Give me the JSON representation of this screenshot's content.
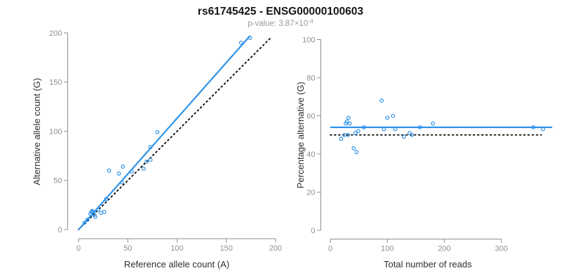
{
  "title": "rs61745425 - ENSG00000100603",
  "subtitle": {
    "label": "p-value:",
    "text": "p-value: 3.87×10",
    "exponent": "-4",
    "p_value": "3.87e-4"
  },
  "colors": {
    "accent_blue": "#2e93ea",
    "reference_black": "#000000",
    "axis_gray": "#8e8e8e",
    "tick_label_gray": "#8e8e8e",
    "axis_title_dark": "#2e2e2e",
    "subtitle_gray": "#9b9b9b",
    "background": "#ffffff"
  },
  "chart_data": [
    {
      "type": "scatter",
      "panel": "left",
      "title": "",
      "xlabel": "Reference allele count (A)",
      "ylabel": "Alternative allele count (G)",
      "xlim": [
        0,
        200
      ],
      "ylim": [
        0,
        200
      ],
      "xticks": [
        0,
        50,
        100,
        150,
        200
      ],
      "yticks": [
        0,
        50,
        100,
        150,
        200
      ],
      "grid": false,
      "legend": "none",
      "points": [
        [
          6,
          7
        ],
        [
          9,
          10
        ],
        [
          12,
          16
        ],
        [
          13,
          18
        ],
        [
          14,
          19
        ],
        [
          15,
          18
        ],
        [
          16,
          15
        ],
        [
          17,
          13
        ],
        [
          20,
          20
        ],
        [
          23,
          17
        ],
        [
          26,
          18
        ],
        [
          28,
          31
        ],
        [
          31,
          60
        ],
        [
          41,
          57
        ],
        [
          44,
          48
        ],
        [
          45,
          64
        ],
        [
          54,
          59
        ],
        [
          66,
          62
        ],
        [
          69,
          69
        ],
        [
          73,
          71
        ],
        [
          73,
          84
        ],
        [
          80,
          99
        ],
        [
          165,
          190
        ],
        [
          174,
          195
        ]
      ],
      "lines": [
        {
          "name": "identity-line",
          "role": "y-equals-x reference",
          "x1": 0,
          "y1": 0,
          "x2": 195,
          "y2": 195,
          "style": "dotted",
          "color": "black"
        },
        {
          "name": "regression-line",
          "role": "fit through points, slope ~1.13",
          "x1": 0,
          "y1": 0,
          "x2": 174,
          "y2": 197,
          "style": "solid",
          "color": "blue"
        }
      ]
    },
    {
      "type": "scatter",
      "panel": "right",
      "title": "",
      "xlabel": "Total number of reads",
      "ylabel": "Percentage alternative (G)",
      "xlim": [
        0,
        390
      ],
      "ylim": [
        0,
        100
      ],
      "xticks": [
        0,
        100,
        200,
        300
      ],
      "yticks": [
        0,
        20,
        40,
        60,
        80,
        100
      ],
      "grid": false,
      "legend": "none",
      "points": [
        [
          19,
          48
        ],
        [
          25,
          50
        ],
        [
          27,
          56
        ],
        [
          29,
          57
        ],
        [
          31,
          50
        ],
        [
          32,
          59
        ],
        [
          34,
          56
        ],
        [
          41,
          43
        ],
        [
          44,
          51
        ],
        [
          46,
          41
        ],
        [
          49,
          52
        ],
        [
          59,
          54
        ],
        [
          90,
          68
        ],
        [
          94,
          53
        ],
        [
          100,
          59
        ],
        [
          110,
          60
        ],
        [
          114,
          53
        ],
        [
          129,
          49
        ],
        [
          139,
          51
        ],
        [
          143,
          50
        ],
        [
          157,
          54
        ],
        [
          180,
          56
        ],
        [
          356,
          54
        ],
        [
          373,
          53
        ]
      ],
      "lines": [
        {
          "name": "fifty-percent-line",
          "role": "50% reference",
          "x1": 0,
          "y1": 50,
          "x2": 370,
          "y2": 50,
          "style": "dotted",
          "color": "black"
        },
        {
          "name": "mean-percentage-line",
          "role": "mean alternative percentage ~54%",
          "x1": 0,
          "y1": 54,
          "x2": 389,
          "y2": 54,
          "style": "solid",
          "color": "blue"
        }
      ]
    }
  ]
}
